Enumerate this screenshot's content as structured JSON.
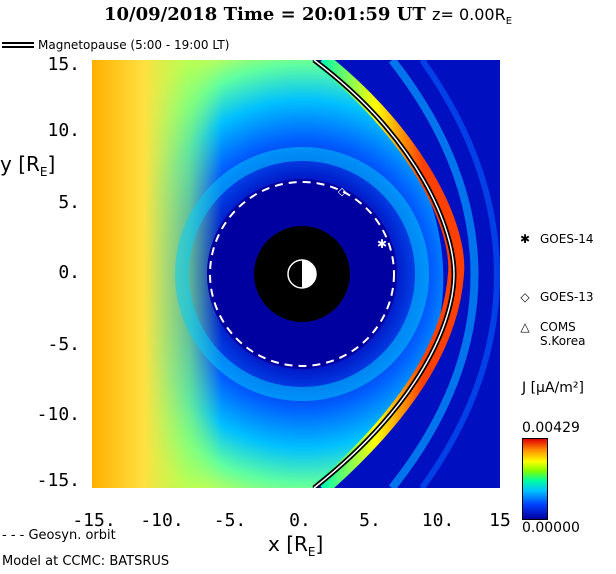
{
  "header": {
    "date": "10/09/2018",
    "time_label": "Time",
    "time_value": "= 20:01:59 UT",
    "z_label": "z= 0.00R",
    "z_sub": "E"
  },
  "legend": {
    "magnetopause": "Magnetopause (5:00 - 19:00 LT)",
    "geosyn": "- - - Geosyn. orbit"
  },
  "axes": {
    "ylabel": "y [R",
    "ylabel_sub": "E",
    "ylabel_close": "]",
    "xlabel": "x [R",
    "xlabel_sub": "E",
    "xlabel_close": "]",
    "yticks": [
      "15.",
      "10.",
      "5.",
      "0.",
      "-5.",
      "-10.",
      "-15."
    ],
    "xticks": [
      "-15.",
      "-10.",
      "-5.",
      "0.",
      "5.",
      "10.",
      "15"
    ],
    "xlim": [
      -15,
      15
    ],
    "ylim": [
      -15,
      15
    ]
  },
  "satellites": [
    {
      "name": "GOES-14",
      "marker": "✱"
    },
    {
      "name": "GOES-13",
      "marker": "◇"
    },
    {
      "name": "COMS",
      "name2": "S.Korea",
      "marker": "△"
    }
  ],
  "colorbar": {
    "title": "J [μA/m²]",
    "max": "0.00429",
    "min": "0.00000"
  },
  "footer": {
    "model": "Model at CCMC: BATSRUS"
  },
  "colors": {
    "field_high": "#ff4000",
    "field_low": "#0000a0",
    "earth": "#000000"
  }
}
